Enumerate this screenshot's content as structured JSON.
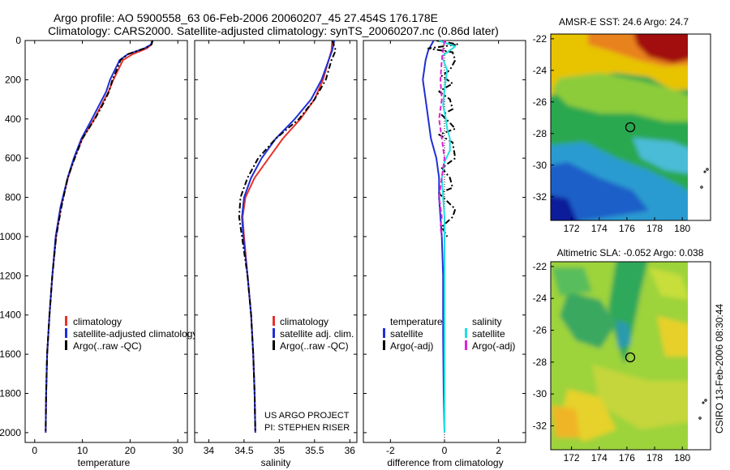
{
  "header": {
    "title_line1": "Argo profile: AO 5900558_63 06-Feb-2006 20060207_45 27.454S 176.178E",
    "title_line2": "Climatology: CARS2000. Satellite-adjusted climatology: synTS_20060207.nc (0.86d later)"
  },
  "credit": {
    "project": "US ARGO PROJECT",
    "pi": "PI: STEPHEN RISER",
    "stamp": "CSIRO 13-Feb-2006 08:30:44"
  },
  "colors": {
    "climatology": "#e8322a",
    "satellite": "#1f2fd6",
    "argo": "#000000",
    "satellite_salinity": "#22dede",
    "argo_salinity": "#e020d8"
  },
  "chart_data": [
    {
      "id": "temperature",
      "type": "line",
      "xlabel": "temperature",
      "ylabel": "",
      "xlim": [
        -2,
        32
      ],
      "ylim": [
        2050,
        0
      ],
      "xticks": [
        0,
        10,
        20,
        30
      ],
      "yticks": [
        0,
        200,
        400,
        600,
        800,
        1000,
        1200,
        1400,
        1600,
        1800,
        2000
      ],
      "legend": {
        "placement": "center-right",
        "entries": [
          "climatology",
          "satellite-adjusted climatology",
          "Argo(..raw -QC)"
        ]
      },
      "series": [
        {
          "name": "climatology",
          "color": "#e8322a",
          "style": "solid",
          "x": [
            24.7,
            24.5,
            23.5,
            20.5,
            18.5,
            17.5,
            16.5,
            15.5,
            14.0,
            12.5,
            10.0,
            8.3,
            7.0,
            5.5,
            4.5,
            3.7,
            3.1,
            2.6,
            2.4,
            2.3
          ],
          "y": [
            0,
            20,
            40,
            70,
            100,
            150,
            200,
            260,
            330,
            400,
            500,
            600,
            700,
            850,
            1000,
            1200,
            1400,
            1600,
            1800,
            2000
          ]
        },
        {
          "name": "satellite-adjusted climatology",
          "color": "#1f2fd6",
          "style": "solid",
          "x": [
            24.6,
            24.4,
            23.0,
            19.5,
            17.8,
            16.8,
            15.8,
            15.0,
            13.5,
            12.0,
            9.8,
            8.2,
            6.9,
            5.4,
            4.4,
            3.7,
            3.1,
            2.6,
            2.4,
            2.3
          ],
          "y": [
            0,
            20,
            40,
            70,
            100,
            150,
            200,
            260,
            330,
            400,
            500,
            600,
            700,
            850,
            1000,
            1200,
            1400,
            1600,
            1800,
            2000
          ]
        },
        {
          "name": "Argo(..raw -QC)",
          "color": "#000000",
          "style": "dashdot",
          "x": [
            24.7,
            24.5,
            23.0,
            19.5,
            18.0,
            17.2,
            16.3,
            15.6,
            14.2,
            12.6,
            10.0,
            8.4,
            6.9,
            5.6,
            4.5,
            3.7,
            3.1,
            2.6,
            2.4,
            2.3
          ],
          "y": [
            0,
            20,
            40,
            70,
            100,
            150,
            200,
            260,
            330,
            400,
            500,
            600,
            700,
            850,
            1000,
            1200,
            1400,
            1600,
            1800,
            2000
          ]
        }
      ]
    },
    {
      "id": "salinity",
      "type": "line",
      "xlabel": "salinity",
      "ylabel": "",
      "xlim": [
        33.8,
        36.1
      ],
      "ylim": [
        2050,
        0
      ],
      "xticks": [
        34,
        34.5,
        35,
        35.5,
        36
      ],
      "yticks": [
        0,
        200,
        400,
        600,
        800,
        1000,
        1200,
        1400,
        1600,
        1800,
        2000
      ],
      "legend": {
        "placement": "center-right",
        "entries": [
          "climatology",
          "satellite adj. clim.",
          "Argo(..raw -QC)"
        ]
      },
      "series": [
        {
          "name": "climatology",
          "color": "#e8322a",
          "style": "solid",
          "x": [
            35.75,
            35.74,
            35.7,
            35.62,
            35.5,
            35.3,
            35.05,
            34.85,
            34.65,
            34.52,
            34.48,
            34.5,
            34.55,
            34.6,
            34.63,
            34.65,
            34.66
          ],
          "y": [
            0,
            50,
            100,
            200,
            300,
            400,
            500,
            600,
            700,
            800,
            900,
            1000,
            1200,
            1400,
            1600,
            1800,
            2000
          ]
        },
        {
          "name": "satellite adj. clim.",
          "color": "#1f2fd6",
          "style": "solid",
          "x": [
            35.78,
            35.75,
            35.7,
            35.6,
            35.45,
            35.22,
            34.95,
            34.75,
            34.6,
            34.5,
            34.47,
            34.49,
            34.55,
            34.6,
            34.63,
            34.65,
            34.66
          ],
          "y": [
            0,
            50,
            100,
            200,
            300,
            400,
            500,
            600,
            700,
            800,
            900,
            1000,
            1200,
            1400,
            1600,
            1800,
            2000
          ]
        },
        {
          "name": "Argo(..raw -QC)",
          "color": "#000000",
          "style": "dashdot",
          "x": [
            35.75,
            35.8,
            35.74,
            35.66,
            35.5,
            35.28,
            34.95,
            34.7,
            34.55,
            34.45,
            34.43,
            34.47,
            34.55,
            34.6,
            34.63,
            34.65,
            34.66
          ],
          "y": [
            0,
            50,
            100,
            200,
            300,
            400,
            500,
            600,
            700,
            800,
            900,
            1000,
            1200,
            1400,
            1600,
            1800,
            2000
          ]
        }
      ]
    },
    {
      "id": "difference",
      "type": "line",
      "xlabel": "difference from climatology",
      "ylabel": "",
      "xlim": [
        -3,
        3
      ],
      "ylim": [
        2050,
        0
      ],
      "xticks": [
        -2,
        0,
        2
      ],
      "yticks": [
        0,
        200,
        400,
        600,
        800,
        1000,
        1200,
        1400,
        1600,
        1800,
        2000
      ],
      "zero_line": true,
      "legend": {
        "placement": "center",
        "entries": [
          "temperature",
          "satellite",
          "Argo(-adj)",
          "salinity",
          "satellite",
          "Argo(-adj)"
        ]
      },
      "series": [
        {
          "name": "temperature satellite",
          "color": "#1f2fd6",
          "style": "solid",
          "x": [
            -0.4,
            -0.6,
            -0.7,
            -0.8,
            -0.7,
            -0.6,
            -0.5,
            -0.3,
            -0.2,
            -0.2,
            -0.15,
            -0.1,
            -0.05,
            -0.05,
            -0.03,
            0
          ],
          "y": [
            0,
            50,
            100,
            200,
            300,
            400,
            500,
            600,
            700,
            800,
            900,
            1000,
            1200,
            1500,
            1800,
            2000
          ]
        },
        {
          "name": "temperature Argo(-adj)",
          "color": "#000000",
          "style": "dashdot",
          "x": [
            -0.3,
            0.5,
            -0.6,
            0.3,
            0.4,
            0.2,
            -0.1,
            0.3,
            -0.2,
            0.2,
            0.3,
            -0.1,
            0.2,
            0.4,
            -0.2,
            0.3,
            0.4,
            -0.1,
            0.2,
            0.3,
            -0.2,
            0.1,
            0.4,
            0.3,
            -0.1,
            0.1
          ],
          "y": [
            0,
            20,
            40,
            60,
            100,
            150,
            180,
            220,
            260,
            300,
            350,
            380,
            420,
            450,
            480,
            520,
            600,
            650,
            700,
            750,
            780,
            820,
            860,
            900,
            950,
            1000
          ]
        },
        {
          "name": "salinity satellite",
          "color": "#22dede",
          "style": "solid",
          "x": [
            -0.2,
            0.4,
            -0.1,
            0.1,
            0.0,
            -0.05,
            0.05,
            0.1,
            0.2,
            0.2,
            0.0,
            -0.1,
            -0.05,
            0.0,
            0.0,
            0.0
          ],
          "y": [
            0,
            30,
            80,
            150,
            250,
            330,
            400,
            450,
            500,
            560,
            620,
            700,
            800,
            900,
            1000,
            2000
          ]
        },
        {
          "name": "salinity Argo(-adj)",
          "color": "#e020d8",
          "style": "dashed",
          "x": [
            0.0,
            -0.1,
            -0.15,
            -0.1,
            -0.2,
            -0.1,
            0.0,
            -0.1,
            -0.2,
            -0.15,
            -0.1,
            -0.15,
            -0.1
          ],
          "y": [
            0,
            100,
            200,
            300,
            400,
            500,
            600,
            700,
            800,
            850,
            900,
            950,
            1000
          ]
        }
      ]
    },
    {
      "id": "sst-map",
      "type": "heatmap",
      "title": "AMSR-E SST: 24.6 Argo: 24.7",
      "xlim": [
        170.5,
        181.5
      ],
      "ylim": [
        -33.5,
        -21.7
      ],
      "xticks": [
        172,
        174,
        176,
        178,
        180
      ],
      "yticks": [
        -22,
        -24,
        -26,
        -28,
        -30,
        -32
      ],
      "marker": {
        "lon": 176.178,
        "lat": -27.454
      }
    },
    {
      "id": "sla-map",
      "type": "heatmap",
      "title": "Altimetric SLA: -0.052 Argo: 0.038",
      "xlim": [
        170.5,
        181.5
      ],
      "ylim": [
        -33.5,
        -21.7
      ],
      "xticks": [
        172,
        174,
        176,
        178,
        180
      ],
      "yticks": [
        -22,
        -24,
        -26,
        -28,
        -30,
        -32
      ],
      "marker": {
        "lon": 176.178,
        "lat": -27.454
      }
    }
  ]
}
